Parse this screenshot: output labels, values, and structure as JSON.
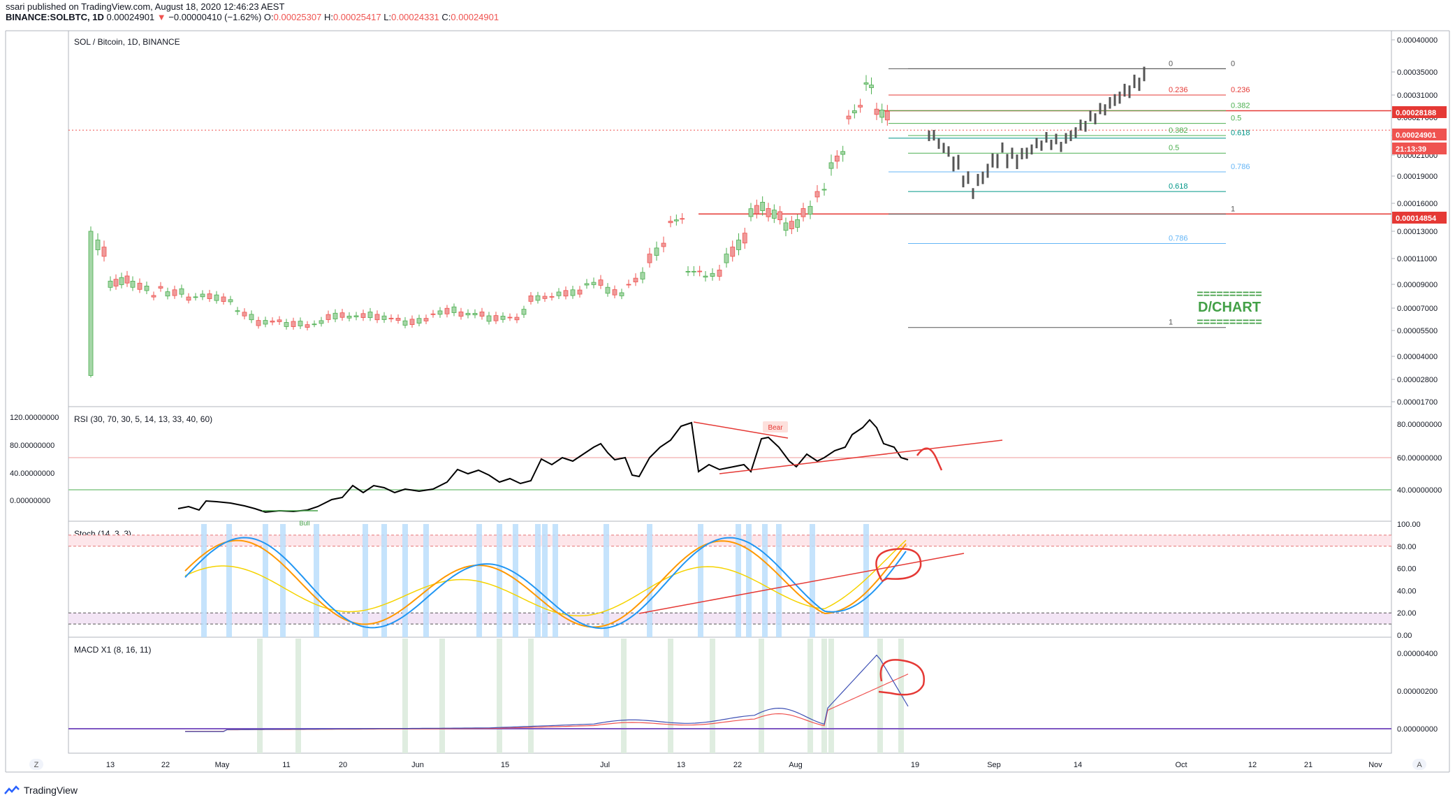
{
  "header": {
    "line1": "ssari published on TradingView.com, August 18, 2020 12:46:23 AEST",
    "symbol": "BINANCE:SOLBTC, 1D",
    "last": "0.00024901",
    "arrow": "▼",
    "change": "−0.00000410 (−1.62%)",
    "o_label": "O:",
    "o": "0.00025307",
    "h_label": "H:",
    "h": "0.00025417",
    "l_label": "L:",
    "l": "0.00024331",
    "c_label": "C:",
    "c": "0.00024901"
  },
  "brand": {
    "name": "TradingView",
    "icon": "tradingview-logo-icon"
  },
  "corner_left": "Z",
  "corner_right": "A",
  "colors": {
    "up": "#26a69a",
    "upFill": "#a5d6a7",
    "upStroke": "#4caf50",
    "down": "#ef5350",
    "downFill": "#ef9a9a",
    "grey": "#555555",
    "border": "#b2b5be",
    "blue": "#2196f3",
    "orange": "#ff9800",
    "yellow": "#f5d300",
    "red": "#e53935"
  },
  "chart_data": [
    {
      "type": "candlestick",
      "title": "SOL / Bitcoin, 1D, BINANCE",
      "ylim": [
        1.7e-05,
        0.0004
      ],
      "y_ticks": [
        "0.00040000",
        "0.00035000",
        "0.00031000",
        "0.00027000",
        "0.00024000",
        "0.00021000",
        "0.00019000",
        "0.00016000",
        "0.00013000",
        "0.00011000",
        "0.00009000",
        "0.00007000",
        "0.00005500",
        "0.00004000",
        "0.00002800",
        "0.00001700"
      ],
      "x_ticks": [
        "13",
        "22",
        "May",
        "11",
        "20",
        "Jun",
        "15",
        "Jul",
        "13",
        "22",
        "Aug",
        "19",
        "Sep",
        "14",
        "Oct",
        "12",
        "21",
        "Nov"
      ],
      "price_badges": [
        {
          "value": "0.00028188",
          "color": "#e53935"
        },
        {
          "value": "0.00024901",
          "color": "#ef5350"
        },
        {
          "value": "21:13:39",
          "color": "#ef5350"
        },
        {
          "value": "0.00014854",
          "color": "#e53935"
        }
      ],
      "fib_left": [
        {
          "label": "0",
          "value": 0.000355,
          "color": "#555555"
        },
        {
          "label": "0.236",
          "value": 0.00031,
          "color": "#e53935"
        },
        {
          "label": "0.382",
          "value": 0.00024,
          "color": "#4caf50"
        },
        {
          "label": "0.5",
          "value": 0.000213,
          "color": "#4caf50"
        },
        {
          "label": "0.618",
          "value": 0.000173,
          "color": "#009688"
        },
        {
          "label": "0.786",
          "value": 0.000121,
          "color": "#64b5f6"
        },
        {
          "label": "1",
          "value": 5.7e-05,
          "color": "#555555"
        }
      ],
      "fib_right": [
        {
          "label": "0",
          "value": 0.000355,
          "color": "#555555"
        },
        {
          "label": "0.236",
          "value": 0.00031,
          "color": "#e53935"
        },
        {
          "label": "0.382",
          "value": 0.000282,
          "color": "#4caf50"
        },
        {
          "label": "0.5",
          "value": 0.00026,
          "color": "#4caf50"
        },
        {
          "label": "0.618",
          "value": 0.000236,
          "color": "#009688"
        },
        {
          "label": "0.786",
          "value": 0.000194,
          "color": "#64b5f6"
        },
        {
          "label": "1",
          "value": 0.0001485,
          "color": "#555555"
        }
      ],
      "annotation": {
        "rule": "==========",
        "text": "D/CHART"
      },
      "last_price": 0.00024901,
      "level_hline": 0.00028188,
      "support_hline": 0.00014854
    },
    {
      "type": "line",
      "title": "RSI (30, 70, 30, 5, 14, 13, 33, 40, 60)",
      "left_ticks": [
        "120.00000000",
        "80.00000000",
        "40.00000000",
        "0.00000000"
      ],
      "right_ticks": [
        "80.00000000",
        "60.00000000",
        "40.00000000"
      ],
      "bands": [
        60,
        40
      ],
      "label": "Bear",
      "label2": "Bull"
    },
    {
      "type": "line",
      "title": "Stoch (14, 3, 3)",
      "right_ticks": [
        "100.00",
        "80.00",
        "60.00",
        "40.00",
        "20.00",
        "0.00"
      ],
      "bands": [
        90,
        80,
        20,
        10
      ]
    },
    {
      "type": "line",
      "title": "MACD X1 (8, 16, 11)",
      "right_ticks": [
        "0.00000400",
        "0.00000200",
        "0.00000000"
      ]
    }
  ]
}
